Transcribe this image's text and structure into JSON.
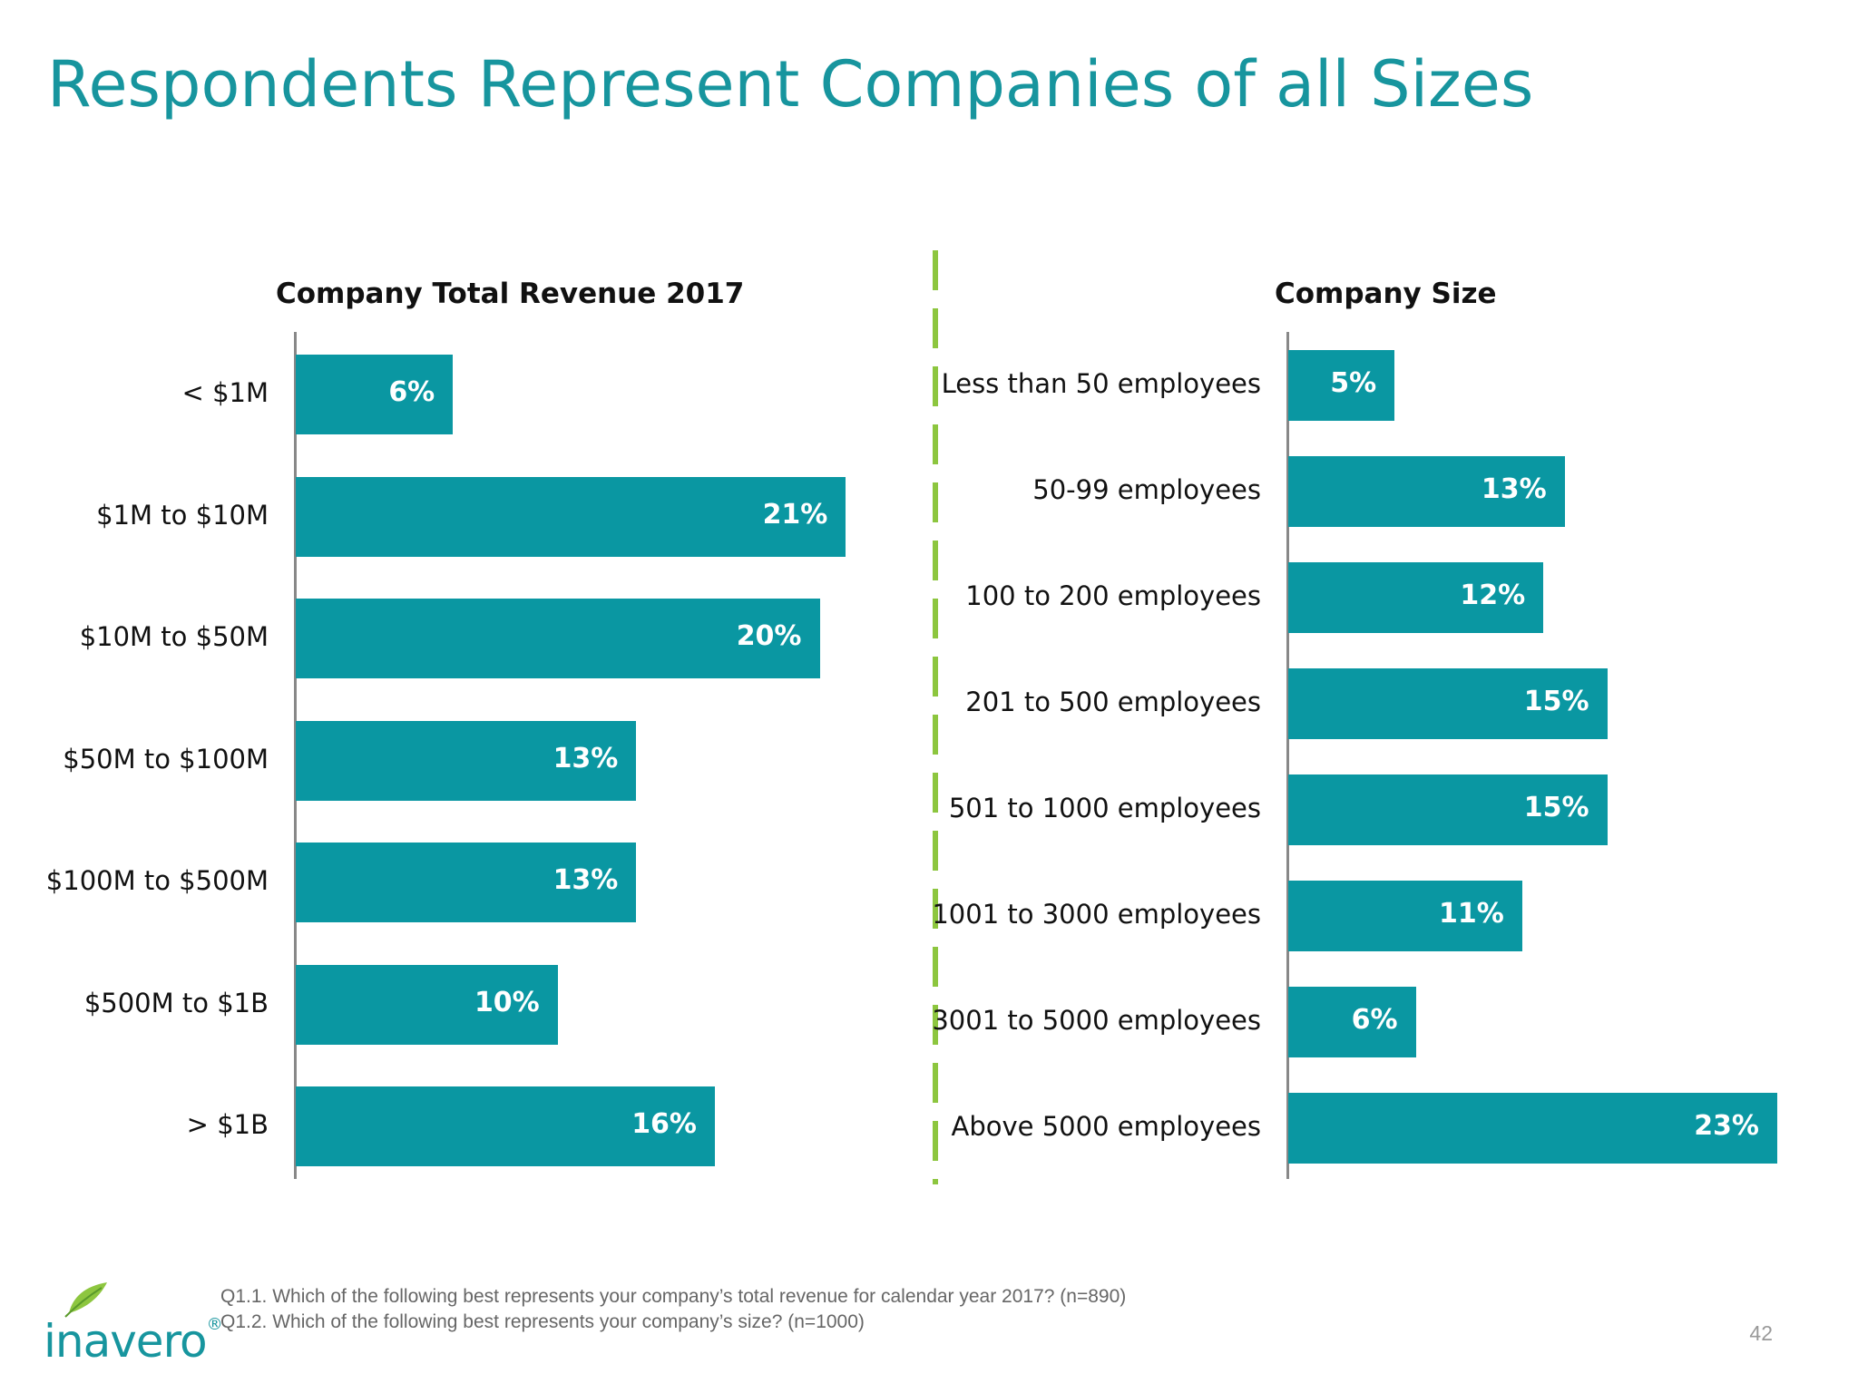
{
  "page": {
    "title": "Respondents Represent Companies of all Sizes",
    "footnotes": [
      "Q1.1. Which of the following best represents your company’s total revenue for calendar year 2017? (n=890)",
      "Q1.2. Which of the following best represents your company’s size? (n=1000)"
    ],
    "page_number": "42",
    "logo_text": "inavero",
    "logo_registered": "®"
  },
  "colors": {
    "title": "#17959e",
    "bar": "#0a97a2",
    "divider": "#8dc63f"
  },
  "chart_data": [
    {
      "type": "bar",
      "orientation": "horizontal",
      "title": "Company Total Revenue 2017",
      "categories": [
        "< $1M",
        "$1M to $10M",
        "$10M to $50M",
        "$50M to $100M",
        "$100M to $500M",
        "$500M to $1B",
        "> $1B"
      ],
      "values": [
        6,
        21,
        20,
        13,
        13,
        10,
        16
      ],
      "value_labels": [
        "6%",
        "21%",
        "20%",
        "13%",
        "13%",
        "10%",
        "16%"
      ],
      "unit": "%",
      "xlim": [
        0,
        24
      ],
      "grid": false,
      "legend": "none"
    },
    {
      "type": "bar",
      "orientation": "horizontal",
      "title": "Company Size",
      "categories": [
        "Less than 50 employees",
        "50-99 employees",
        "100 to 200 employees",
        "201 to 500 employees",
        "501 to 1000 employees",
        "1001 to 3000 employees",
        "3001 to 5000 employees",
        "Above 5000 employees"
      ],
      "values": [
        5,
        13,
        12,
        15,
        15,
        11,
        6,
        23
      ],
      "value_labels": [
        "5%",
        "13%",
        "12%",
        "15%",
        "15%",
        "11%",
        "6%",
        "23%"
      ],
      "unit": "%",
      "xlim": [
        0,
        23
      ],
      "grid": false,
      "legend": "none"
    }
  ]
}
